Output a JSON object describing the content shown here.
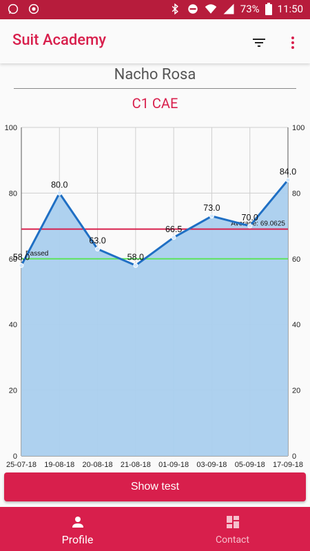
{
  "status_bar": {
    "battery": "73%",
    "time": "11:50"
  },
  "app_bar": {
    "title": "Suit Academy",
    "filter_icon": "filter-list-icon",
    "menu_icon": "more-vert-icon"
  },
  "student": {
    "name": "Nacho Rosa",
    "course": "C1 CAE"
  },
  "chart_data": {
    "type": "line",
    "categories": [
      "25-07-18",
      "19-08-18",
      "20-08-18",
      "21-08-18",
      "01-09-18",
      "03-09-18",
      "05-09-18",
      "17-09-18"
    ],
    "series": [
      {
        "values": [
          58.0,
          80.0,
          63.0,
          58.0,
          66.5,
          73.0,
          70.0,
          84.0
        ],
        "labels": [
          "58.0",
          "80.0",
          "63.0",
          "58.0",
          "66.5",
          "73.0",
          "70.0",
          "84.0"
        ]
      }
    ],
    "ylim": [
      0,
      100
    ],
    "yticks": [
      0,
      20,
      40,
      60,
      80,
      100
    ],
    "reference_lines": [
      {
        "label": "Average: 69.0625",
        "value": 69.0625,
        "color": "#d81f4c"
      },
      {
        "label": "Passed",
        "value": 60,
        "color": "#5ce35c"
      }
    ],
    "fill_color": "#aacfee",
    "line_color": "#1f6fc4",
    "grid": true
  },
  "actions": {
    "show_test": "Show test"
  },
  "bottom_nav": {
    "items": [
      {
        "label": "Profile",
        "icon": "person-icon",
        "active": true
      },
      {
        "label": "Contact",
        "icon": "dashboard-icon",
        "active": false
      }
    ]
  },
  "colors": {
    "primary": "#d81f4c",
    "status_bar": "#b71c3c"
  }
}
